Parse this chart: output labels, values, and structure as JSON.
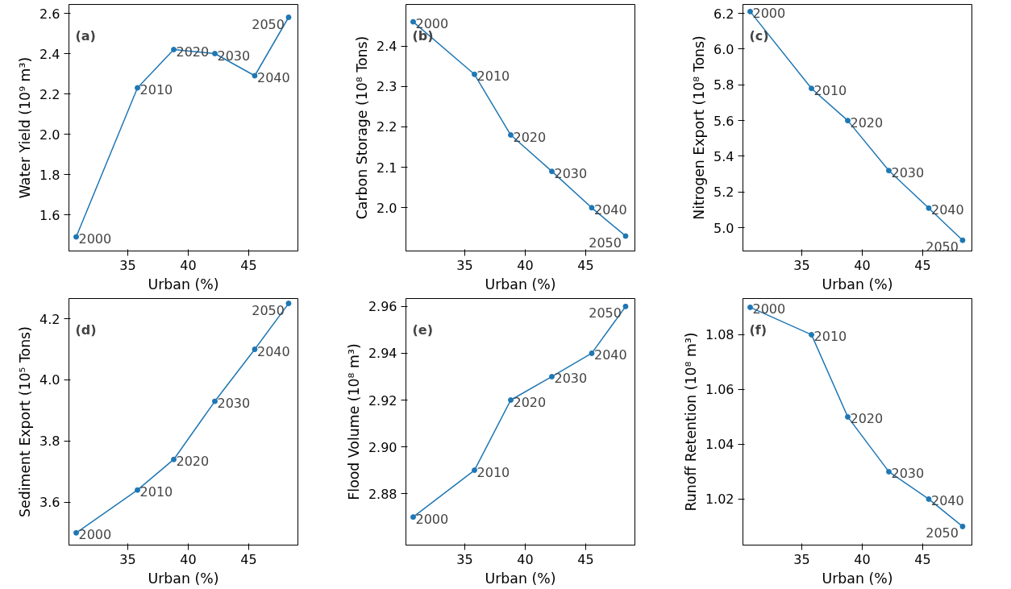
{
  "chart_data": [
    {
      "type": "line",
      "title": "(a)",
      "xlabel": "Urban (%)",
      "ylabel": "Water Yield (10⁹ m³)",
      "x": [
        30.73,
        35.8,
        38.8,
        42.2,
        45.5,
        48.3
      ],
      "marker": "circle",
      "series": [
        {
          "color": "#1f77b4",
          "values": [
            1.49,
            2.23,
            2.42,
            2.4,
            2.29,
            2.58
          ]
        }
      ],
      "value_labels": [
        "2000",
        "2010",
        "2020",
        "2030",
        "2040",
        "2050"
      ],
      "xlim": [
        30.13,
        49.07
      ],
      "xticks": [
        35,
        40,
        45
      ],
      "ylim": [
        1.42,
        2.644
      ],
      "yticks": [
        {
          "value": 1.6,
          "label": "1.6"
        },
        {
          "value": 1.8,
          "label": "1.8"
        },
        {
          "value": 2.0,
          "label": "2.0"
        },
        {
          "value": 2.2,
          "label": "2.2"
        },
        {
          "value": 2.4,
          "label": "2.4"
        },
        {
          "value": 2.6,
          "label": "2.6"
        }
      ]
    },
    {
      "type": "line",
      "title": "(b)",
      "xlabel": "Urban (%)",
      "ylabel": "Carbon Storage (10⁸ Tons)",
      "x": [
        30.73,
        35.8,
        38.8,
        42.2,
        45.5,
        48.3
      ],
      "marker": "circle",
      "series": [
        {
          "color": "#1f77b4",
          "values": [
            2.46,
            2.33,
            2.18,
            2.09,
            2.0,
            1.93
          ]
        }
      ],
      "value_labels": [
        "2000",
        "2010",
        "2020",
        "2030",
        "2040",
        "2050"
      ],
      "xlim": [
        30.13,
        49.07
      ],
      "xticks": [
        35,
        40,
        45
      ],
      "ylim": [
        1.893,
        2.503
      ],
      "yticks": [
        {
          "value": 2.0,
          "label": "2.0"
        },
        2.1,
        2.2,
        2.3,
        2.4
      ]
    },
    {
      "type": "line",
      "title": "(c)",
      "xlabel": "Urban (%)",
      "ylabel": "Nitrogen Export (10⁸ Tons)",
      "x": [
        30.73,
        35.8,
        38.8,
        42.2,
        45.5,
        48.3
      ],
      "marker": "circle",
      "series": [
        {
          "color": "#1f77b4",
          "values": [
            6.21,
            5.78,
            5.6,
            5.32,
            5.11,
            4.93
          ]
        }
      ],
      "value_labels": [
        "2000",
        "2010",
        "2020",
        "2030",
        "2040",
        "2050"
      ],
      "xlim": [
        30.13,
        49.07
      ],
      "xticks": [
        35,
        40,
        45
      ],
      "ylim": [
        4.87,
        6.25
      ],
      "yticks": [
        {
          "value": 5.0,
          "label": "5.0"
        },
        5.2,
        5.4,
        5.6,
        5.8,
        {
          "value": 6.0,
          "label": "6.0"
        },
        6.2
      ]
    },
    {
      "type": "line",
      "title": "(d)",
      "xlabel": "Urban (%)",
      "ylabel": "Sediment Export (10⁵ Tons)",
      "x": [
        30.73,
        35.8,
        38.8,
        42.2,
        45.5,
        48.3
      ],
      "marker": "circle",
      "series": [
        {
          "color": "#1f77b4",
          "values": [
            3.5,
            3.64,
            3.74,
            3.93,
            4.1,
            4.25
          ]
        }
      ],
      "value_labels": [
        "2000",
        "2010",
        "2020",
        "2030",
        "2040",
        "2050"
      ],
      "xlim": [
        30.13,
        49.07
      ],
      "xticks": [
        35,
        40,
        45
      ],
      "ylim": [
        3.46,
        4.266
      ],
      "yticks": [
        3.6,
        3.8,
        {
          "value": 4.0,
          "label": "4.0"
        },
        4.2
      ]
    },
    {
      "type": "line",
      "title": "(e)",
      "xlabel": "Urban (%)",
      "ylabel": "Flood Volume (10⁸ m³)",
      "x": [
        30.73,
        35.8,
        38.8,
        42.2,
        45.5,
        48.3
      ],
      "marker": "circle",
      "series": [
        {
          "color": "#1f77b4",
          "values": [
            2.87,
            2.89,
            2.92,
            2.93,
            2.94,
            2.96
          ]
        }
      ],
      "value_labels": [
        "2000",
        "2010",
        "2020",
        "2030",
        "2040",
        "2050"
      ],
      "xlim": [
        30.13,
        49.07
      ],
      "xticks": [
        35,
        40,
        45
      ],
      "ylim": [
        2.858,
        2.9634
      ],
      "yticks": [
        2.88,
        {
          "value": 2.9,
          "label": "2.90"
        },
        2.92,
        2.94,
        2.96
      ]
    },
    {
      "type": "line",
      "title": "(f)",
      "xlabel": "Urban (%)",
      "ylabel": "Runoff Retention (10⁸ m³)",
      "x": [
        30.73,
        35.8,
        38.8,
        42.2,
        45.5,
        48.3
      ],
      "marker": "circle",
      "series": [
        {
          "color": "#1f77b4",
          "values": [
            1.09,
            1.08,
            1.05,
            1.03,
            1.02,
            1.01
          ]
        }
      ],
      "value_labels": [
        "2000",
        "2010",
        "2020",
        "2030",
        "2040",
        "2050"
      ],
      "xlim": [
        30.13,
        49.07
      ],
      "xticks": [
        35,
        40,
        45
      ],
      "ylim": [
        1.0032,
        1.0932
      ],
      "yticks": [
        1.02,
        1.04,
        1.06,
        1.08
      ]
    }
  ]
}
